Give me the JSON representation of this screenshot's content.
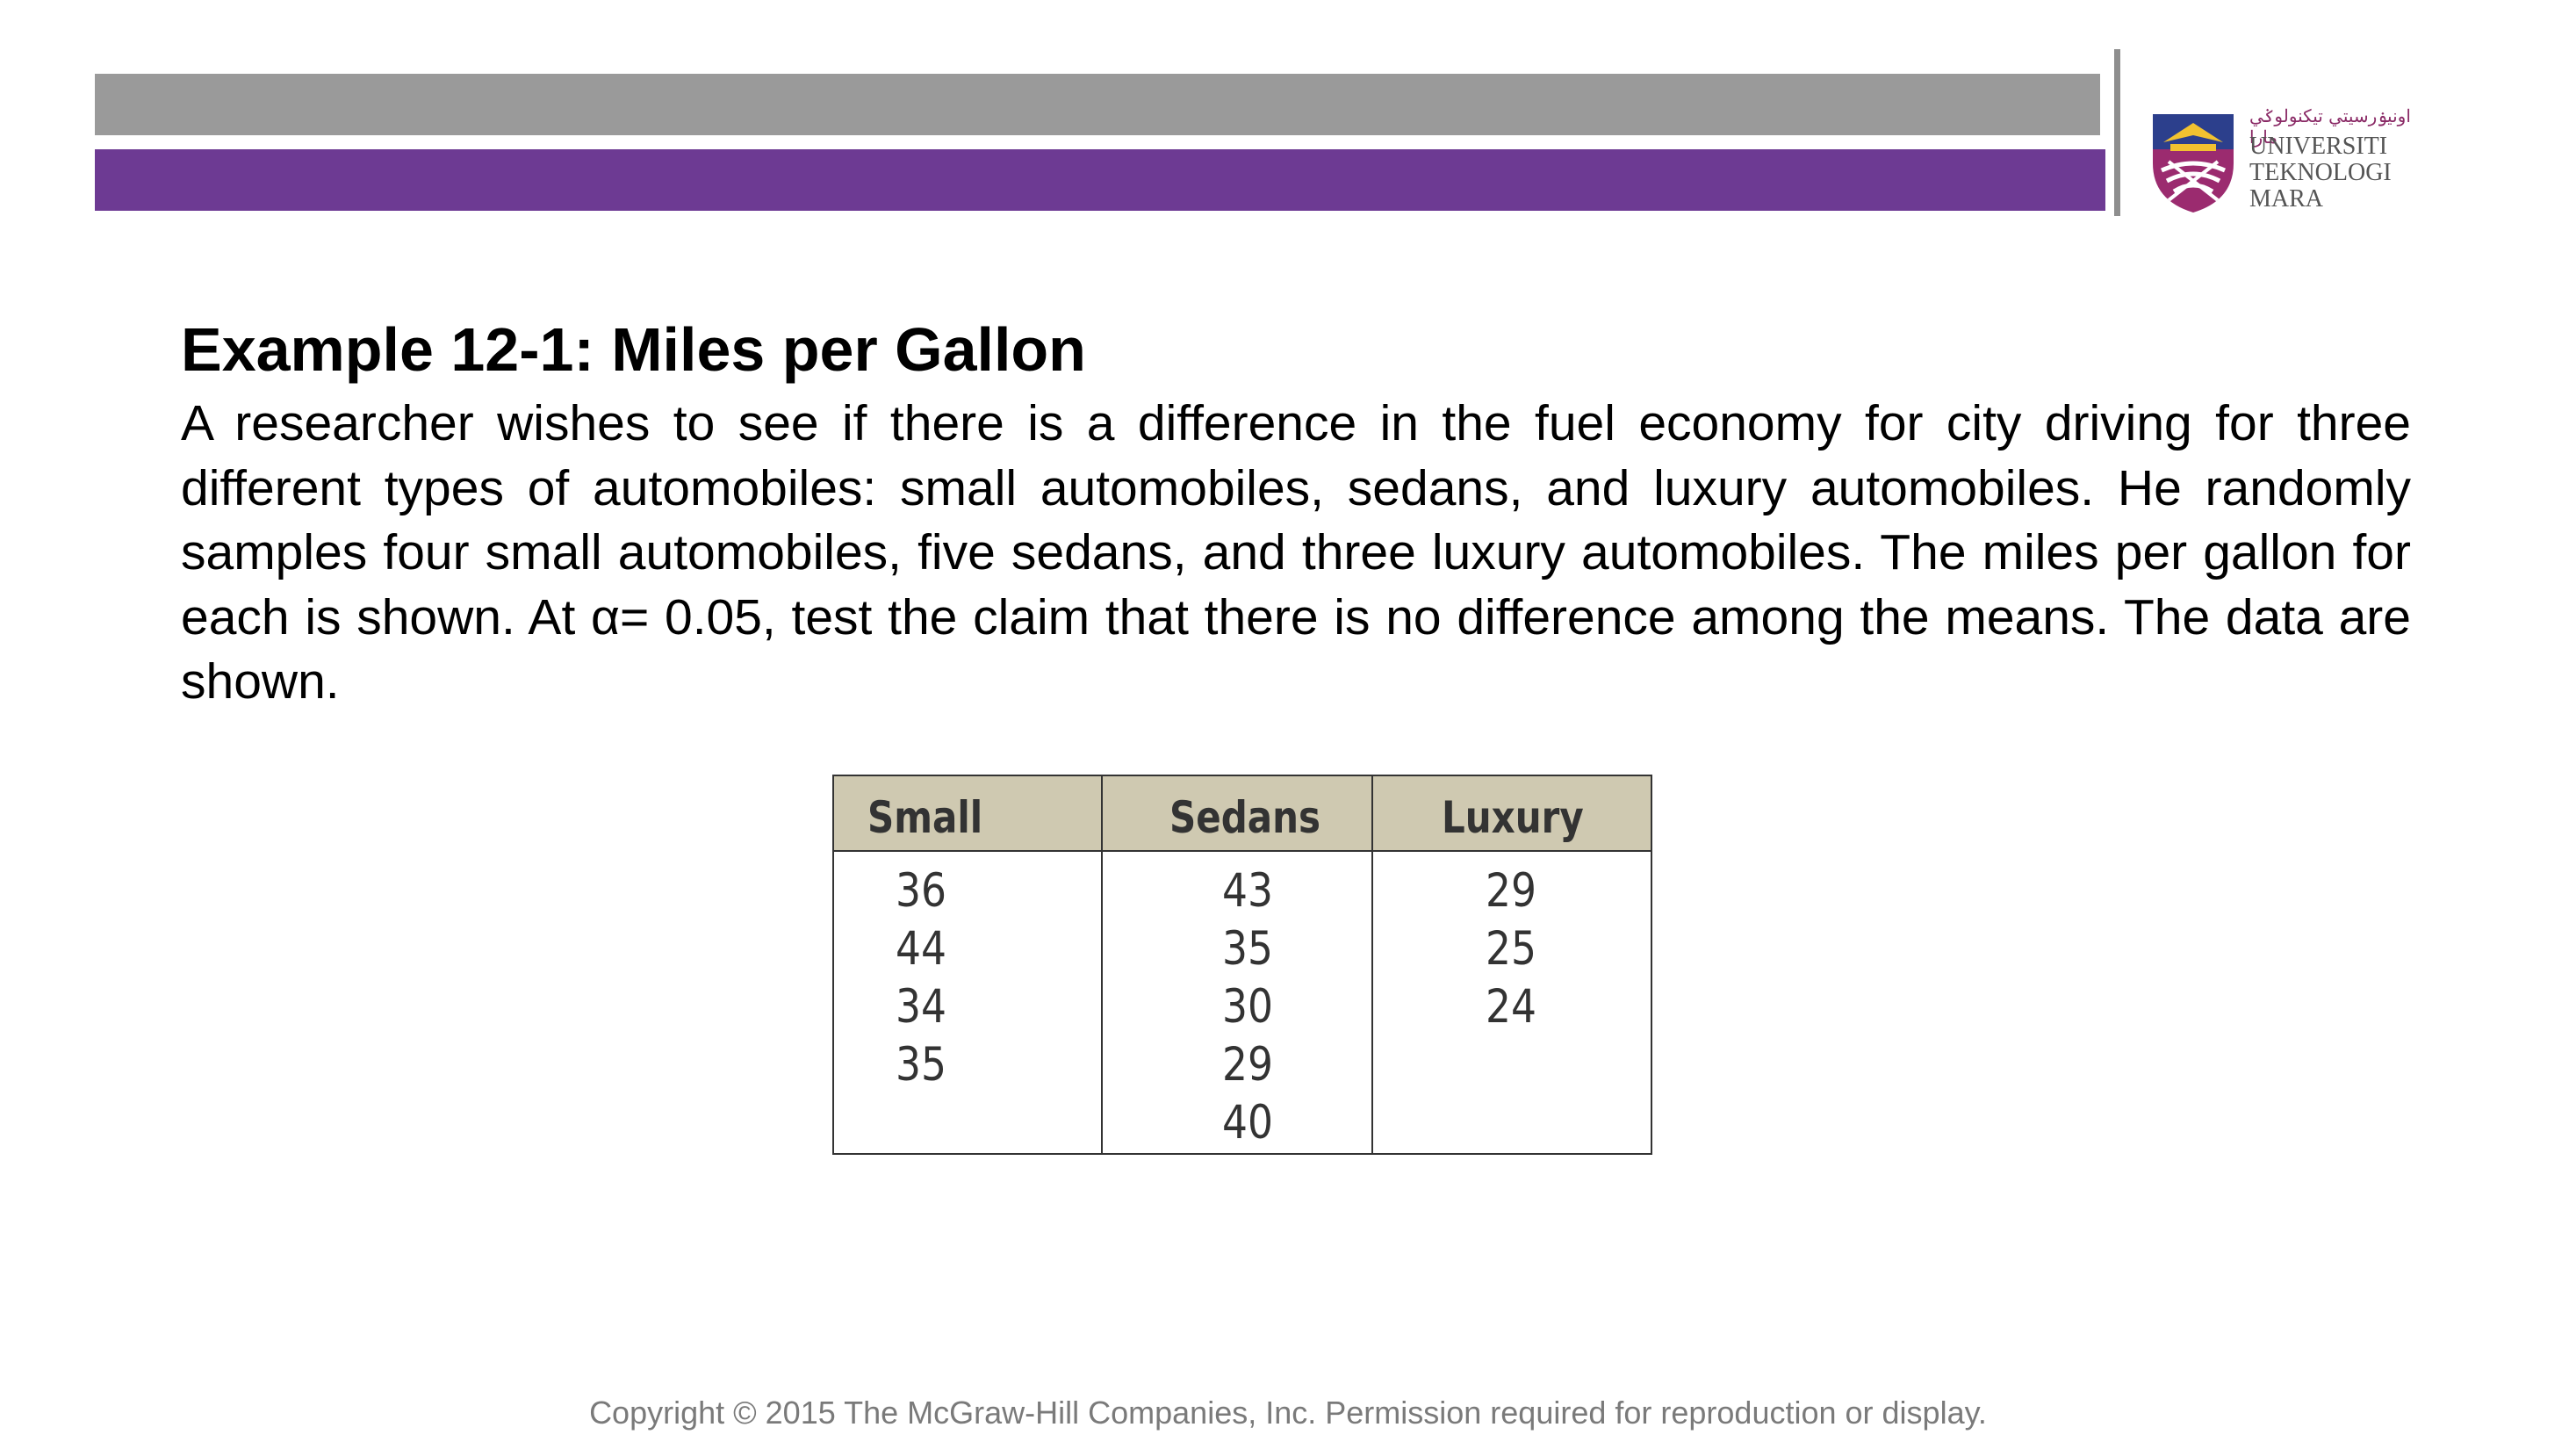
{
  "header": {
    "logo": {
      "jawi": "اونيۏرسيتي تيكنولوݢي مارا",
      "lines": [
        "UNIVERSITI",
        "TEKNOLOGI",
        "MARA"
      ]
    }
  },
  "slide": {
    "title": "Example 12-1: Miles per Gallon",
    "paragraph": "A researcher wishes to see if there is a difference in the fuel economy  for city driving for three different types of automobiles: small  automobiles, sedans, and luxury automobiles. He randomly samples  four small automobiles, five sedans, and three luxury automobiles. The miles per gallon for each is shown. At α= 0.05, test the claim that  there is no difference among the means. The data are shown."
  },
  "table": {
    "columns": [
      {
        "header": "Small",
        "values": [
          "36",
          "44",
          "34",
          "35"
        ]
      },
      {
        "header": "Sedans",
        "values": [
          "43",
          "35",
          "30",
          "29",
          "40"
        ]
      },
      {
        "header": "Luxury",
        "values": [
          "29",
          "25",
          "24"
        ]
      }
    ]
  },
  "footer": {
    "copyright": "Copyright © 2015 The McGraw-Hill Companies, Inc. Permission required for reproduction or display."
  },
  "colors": {
    "gray_bar": "#9a9a9a",
    "purple_bar": "#6d3a93",
    "table_header": "#cfc9b1"
  }
}
